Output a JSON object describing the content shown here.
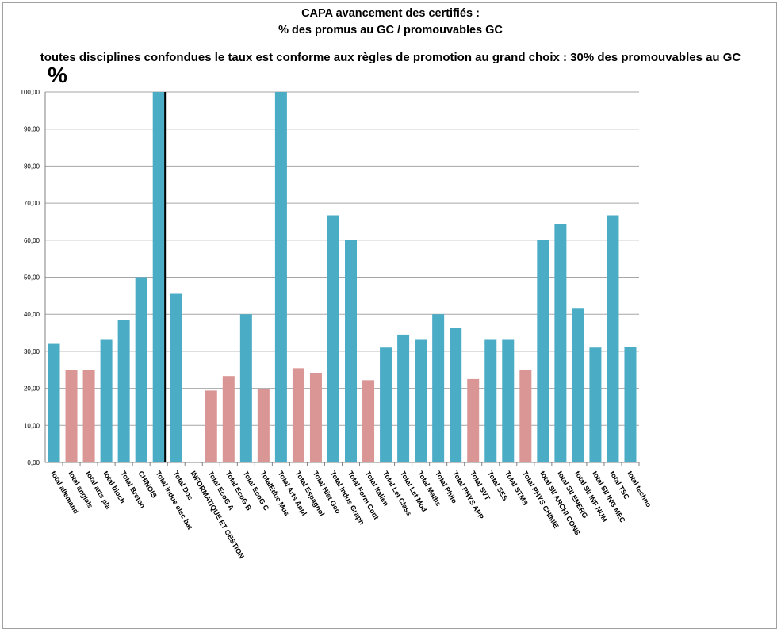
{
  "title_line1": "CAPA avancement des certifiés :",
  "title_line2": "% des promus au GC / promouvables GC",
  "note": "toutes disciplines confondues le taux est conforme aux règles de promotion au grand choix : 30% des promouvables au GC",
  "unit": "%",
  "colors": {
    "teal": "#4bacc6",
    "pink": "#d99694",
    "grid": "#a6a6a6",
    "axis": "#808080",
    "separator": "#000000"
  },
  "chart_data": {
    "type": "bar",
    "ylim": [
      0,
      100
    ],
    "yticks": [
      "0,00",
      "10,00",
      "20,00",
      "30,00",
      "40,00",
      "50,00",
      "60,00",
      "70,00",
      "80,00",
      "90,00",
      "100,00"
    ],
    "grid": true,
    "categories": [
      "total allemand",
      "total anglais",
      "total arts pla",
      "total bioch",
      "Total Breton",
      "CHINOIS",
      "Total indus elec bat",
      "Total Doc",
      "INFORMATIQUE ET GESTION",
      "Total EcoG A",
      "Total EcoG B",
      "Total EcoG C",
      "TotalEduc Mus",
      "Total Arts Appl",
      "Total Espagnol",
      "Total Hist Geo",
      "Total Indus Graph",
      "Total Form Cont",
      "Total Italien",
      "Total Let Class",
      "Total Let Mod",
      "Total Maths",
      "Total Philo",
      "Total PHYS APP",
      "Total SVT",
      "Total SES",
      "Total STMS",
      "Total PHYS CHIMIE",
      "total SII ARCHI CONS",
      "total SII ENERG",
      "total SII INF NUM",
      "total SII ING MEC",
      "total TSC",
      "total techno"
    ],
    "values": [
      32.0,
      25.0,
      25.0,
      33.3,
      38.5,
      50.0,
      100.0,
      45.5,
      0,
      19.4,
      23.3,
      40.0,
      19.7,
      100.0,
      25.4,
      24.2,
      66.7,
      60.0,
      22.2,
      31.0,
      34.5,
      33.3,
      40.0,
      36.4,
      22.5,
      33.3,
      33.3,
      25.0,
      60.0,
      64.3,
      41.7,
      31.0,
      66.7,
      31.2
    ],
    "bar_colors": [
      "teal",
      "pink",
      "pink",
      "teal",
      "teal",
      "teal",
      "teal",
      "teal",
      "teal",
      "pink",
      "pink",
      "teal",
      "pink",
      "teal",
      "pink",
      "pink",
      "teal",
      "teal",
      "pink",
      "teal",
      "teal",
      "teal",
      "teal",
      "teal",
      "pink",
      "teal",
      "teal",
      "pink",
      "teal",
      "teal",
      "teal",
      "teal",
      "teal",
      "teal"
    ],
    "separator_after_index": 6
  }
}
